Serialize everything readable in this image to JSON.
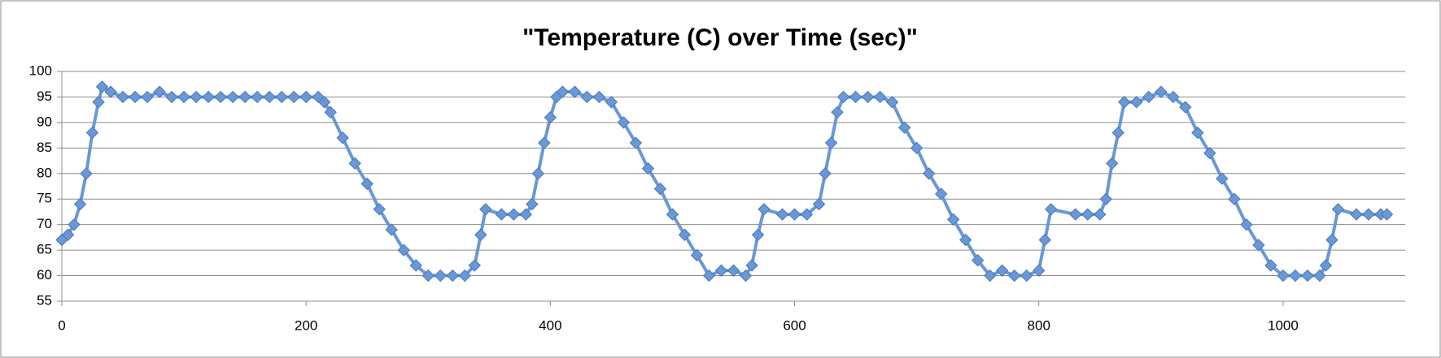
{
  "chart_data": {
    "type": "line",
    "title": "\"Temperature (C) over Time (sec)\"",
    "x": [
      0,
      5,
      10,
      15,
      20,
      25,
      30,
      33,
      40,
      50,
      60,
      70,
      80,
      90,
      100,
      110,
      120,
      130,
      140,
      150,
      160,
      170,
      180,
      190,
      200,
      210,
      215,
      220,
      230,
      240,
      250,
      260,
      270,
      280,
      290,
      300,
      310,
      320,
      330,
      338,
      343,
      347,
      360,
      370,
      380,
      385,
      390,
      395,
      400,
      405,
      410,
      420,
      430,
      440,
      450,
      460,
      470,
      480,
      490,
      500,
      510,
      520,
      530,
      540,
      550,
      560,
      565,
      570,
      575,
      590,
      600,
      610,
      620,
      625,
      630,
      635,
      640,
      650,
      660,
      670,
      680,
      690,
      700,
      710,
      720,
      730,
      740,
      750,
      760,
      770,
      780,
      790,
      800,
      805,
      810,
      830,
      840,
      850,
      855,
      860,
      865,
      870,
      880,
      890,
      900,
      910,
      920,
      930,
      940,
      950,
      960,
      970,
      980,
      990,
      1000,
      1010,
      1020,
      1030,
      1035,
      1040,
      1045,
      1060,
      1070,
      1080,
      1085
    ],
    "series": [
      {
        "name": "Temperature",
        "color": "#6a98d6",
        "values": [
          67,
          68,
          70,
          74,
          80,
          88,
          94,
          97,
          96,
          95,
          95,
          95,
          96,
          95,
          95,
          95,
          95,
          95,
          95,
          95,
          95,
          95,
          95,
          95,
          95,
          95,
          94,
          92,
          87,
          82,
          78,
          73,
          69,
          65,
          62,
          60,
          60,
          60,
          60,
          62,
          68,
          73,
          72,
          72,
          72,
          74,
          80,
          86,
          91,
          95,
          96,
          96,
          95,
          95,
          94,
          90,
          86,
          81,
          77,
          72,
          68,
          64,
          60,
          61,
          61,
          60,
          62,
          68,
          73,
          72,
          72,
          72,
          74,
          80,
          86,
          92,
          95,
          95,
          95,
          95,
          94,
          89,
          85,
          80,
          76,
          71,
          67,
          63,
          60,
          61,
          60,
          60,
          61,
          67,
          73,
          72,
          72,
          72,
          75,
          82,
          88,
          94,
          94,
          95,
          96,
          95,
          93,
          88,
          84,
          79,
          75,
          70,
          66,
          62,
          60,
          60,
          60,
          60,
          62,
          67,
          73,
          72,
          72,
          72,
          72
        ]
      }
    ],
    "xlim": [
      0,
      1100
    ],
    "xticks": [
      0,
      200,
      400,
      600,
      800,
      1000
    ],
    "ylim": [
      55,
      100
    ],
    "yticks": [
      55,
      60,
      65,
      70,
      75,
      80,
      85,
      90,
      95,
      100
    ],
    "grid": true
  }
}
